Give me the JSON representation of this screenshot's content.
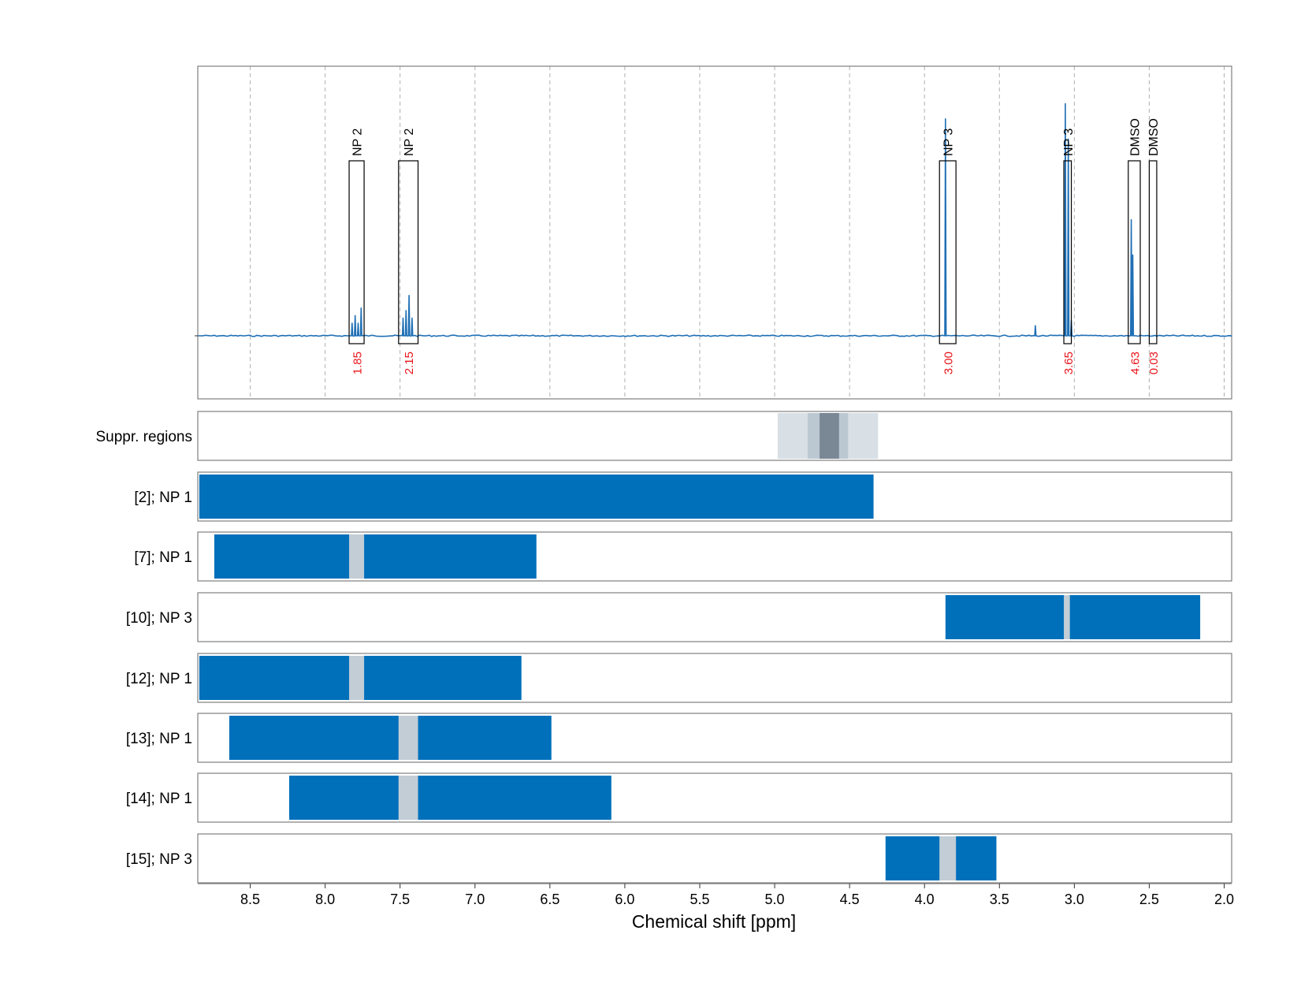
{
  "chart_data": {
    "type": "line",
    "xlabel": "Chemical shift [ppm]",
    "x_reversed": true,
    "xlim": [
      8.85,
      1.95
    ],
    "xticks": [
      8.5,
      8.0,
      7.5,
      7.0,
      6.5,
      6.0,
      5.5,
      5.0,
      4.5,
      4.0,
      3.5,
      3.0,
      2.5,
      2.0
    ],
    "xtick_labels": [
      "8.5",
      "8.0",
      "7.5",
      "7.0",
      "6.5",
      "6.0",
      "5.5",
      "5.0",
      "4.5",
      "4.0",
      "3.5",
      "3.0",
      "2.5",
      "2.0"
    ],
    "grid": true,
    "colors": {
      "spectrum": "#1f6fb5",
      "bar": "#0070bb",
      "gap": "#c2cdd6",
      "peak_value": "#e8141a",
      "suppr_light": "#d8e0e6",
      "suppr_mid": "#bcc8d1",
      "suppr_dark": "#7a8896",
      "frame": "#7f7f7f"
    },
    "spectrum": {
      "peaks": [
        {
          "x": 7.82,
          "h": 0.05
        },
        {
          "x": 7.8,
          "h": 0.08
        },
        {
          "x": 7.78,
          "h": 0.05
        },
        {
          "x": 7.76,
          "h": 0.11
        },
        {
          "x": 7.48,
          "h": 0.07
        },
        {
          "x": 7.46,
          "h": 0.1
        },
        {
          "x": 7.44,
          "h": 0.16
        },
        {
          "x": 7.42,
          "h": 0.07
        },
        {
          "x": 3.86,
          "h": 0.86
        },
        {
          "x": 3.26,
          "h": 0.04
        },
        {
          "x": 3.06,
          "h": 0.92
        },
        {
          "x": 3.04,
          "h": 0.78
        },
        {
          "x": 3.02,
          "h": 0.06
        },
        {
          "x": 2.62,
          "h": 0.46
        },
        {
          "x": 2.61,
          "h": 0.32
        }
      ],
      "annotations": [
        {
          "label": "NP 2",
          "value": "1.85",
          "x_from": 7.84,
          "x_to": 7.74
        },
        {
          "label": "NP 2",
          "value": "2.15",
          "x_from": 7.51,
          "x_to": 7.38
        },
        {
          "label": "NP 3",
          "value": "3.00",
          "x_from": 3.9,
          "x_to": 3.79
        },
        {
          "label": "NP 3",
          "value": "3.65",
          "x_from": 3.07,
          "x_to": 3.02
        },
        {
          "label": "DMSO",
          "value": "4.63",
          "x_from": 2.64,
          "x_to": 2.56
        },
        {
          "label": "DMSO",
          "value": "0.03",
          "x_from": 2.5,
          "x_to": 2.45
        }
      ]
    },
    "rows": [
      {
        "label": "Suppr. regions",
        "type": "suppression",
        "bands": [
          {
            "from": 4.98,
            "to": 4.31,
            "level": "light"
          },
          {
            "from": 4.78,
            "to": 4.51,
            "level": "mid"
          },
          {
            "from": 4.7,
            "to": 4.57,
            "level": "dark"
          }
        ]
      },
      {
        "label": "[2]; NP 1",
        "bars": [
          [
            8.84,
            4.34
          ]
        ],
        "gaps": []
      },
      {
        "label": "[7]; NP 1",
        "bars": [
          [
            8.74,
            7.84
          ],
          [
            7.74,
            6.59
          ]
        ],
        "gaps": [
          [
            7.84,
            7.74
          ]
        ]
      },
      {
        "label": "[10]; NP 3",
        "bars": [
          [
            3.86,
            3.07
          ],
          [
            3.03,
            2.16
          ]
        ],
        "gaps": [
          [
            3.07,
            3.03
          ]
        ]
      },
      {
        "label": "[12]; NP 1",
        "bars": [
          [
            8.84,
            7.84
          ],
          [
            7.74,
            6.69
          ]
        ],
        "gaps": [
          [
            7.84,
            7.74
          ]
        ]
      },
      {
        "label": "[13]; NP 1",
        "bars": [
          [
            8.64,
            7.51
          ],
          [
            7.38,
            6.49
          ]
        ],
        "gaps": [
          [
            7.51,
            7.38
          ]
        ]
      },
      {
        "label": "[14]; NP 1",
        "bars": [
          [
            8.24,
            7.51
          ],
          [
            7.38,
            6.09
          ]
        ],
        "gaps": [
          [
            7.51,
            7.38
          ]
        ]
      },
      {
        "label": "[15]; NP 3",
        "bars": [
          [
            4.26,
            3.9
          ],
          [
            3.79,
            3.52
          ]
        ],
        "gaps": [
          [
            3.9,
            3.79
          ]
        ]
      }
    ]
  }
}
